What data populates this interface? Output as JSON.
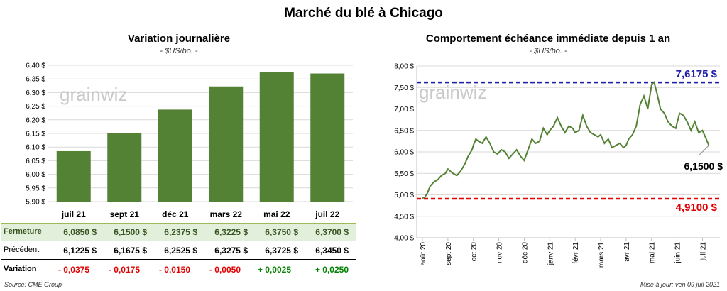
{
  "title": "Marché du blé à Chicago",
  "left_panel": {
    "title": "Variation journalière",
    "subtitle": "- $US/bo. -"
  },
  "right_panel": {
    "title": "Comportement échéance immédiate depuis 1 an",
    "subtitle": "- $US/bo. -"
  },
  "watermark": "grainwiz",
  "chart_data": [
    {
      "type": "bar",
      "categories": [
        "juil 21",
        "sept 21",
        "déc 21",
        "mars 22",
        "mai 22",
        "juil 22"
      ],
      "values": [
        6.085,
        6.15,
        6.2375,
        6.3225,
        6.375,
        6.37
      ],
      "ylim": [
        5.9,
        6.4
      ],
      "yticks": [
        "5,90 $",
        "5,95 $",
        "6,00 $",
        "6,05 $",
        "6,10 $",
        "6,15 $",
        "6,20 $",
        "6,25 $",
        "6,30 $",
        "6,35 $",
        "6,40 $"
      ],
      "color": "#548235",
      "grid": true
    },
    {
      "type": "line",
      "xticks": [
        "août 20",
        "sept 20",
        "oct 20",
        "nov 20",
        "déc 20",
        "janv 21",
        "févr 21",
        "mars 21",
        "avr 21",
        "mai 21",
        "juin 21",
        "juil 21"
      ],
      "ylim": [
        4.0,
        8.0
      ],
      "yticks": [
        "4,00 $",
        "4,50 $",
        "5,00 $",
        "5,50 $",
        "6,00 $",
        "6,50 $",
        "7,00 $",
        "7,50 $",
        "8,00 $"
      ],
      "series": [
        {
          "color": "#548235",
          "x": [
            0,
            0.1,
            0.2,
            0.3,
            0.45,
            0.6,
            0.75,
            0.9,
            1.0,
            1.1,
            1.2,
            1.35,
            1.5,
            1.65,
            1.8,
            1.95,
            2.0,
            2.1,
            2.2,
            2.35,
            2.5,
            2.65,
            2.8,
            2.95,
            3.1,
            3.25,
            3.4,
            3.55,
            3.7,
            3.85,
            4.0,
            4.15,
            4.3,
            4.45,
            4.6,
            4.75,
            4.9,
            5.0,
            5.15,
            5.3,
            5.45,
            5.6,
            5.75,
            5.9,
            6.0,
            6.15,
            6.3,
            6.45,
            6.6,
            6.75,
            6.9,
            7.0,
            7.15,
            7.3,
            7.45,
            7.6,
            7.75,
            7.9,
            8.0,
            8.1,
            8.25,
            8.4,
            8.55,
            8.7,
            8.85,
            9.0,
            9.1,
            9.2,
            9.35,
            9.5,
            9.65,
            9.8,
            9.95,
            10.1,
            10.25,
            10.4,
            10.55,
            10.7,
            10.85,
            11.0,
            11.15,
            11.25
          ],
          "y": [
            4.92,
            4.95,
            5.05,
            5.2,
            5.3,
            5.35,
            5.45,
            5.5,
            5.6,
            5.55,
            5.5,
            5.45,
            5.55,
            5.7,
            5.9,
            6.05,
            6.15,
            6.3,
            6.25,
            6.2,
            6.35,
            6.2,
            6.0,
            5.95,
            6.05,
            6.0,
            5.85,
            5.95,
            6.05,
            5.9,
            5.8,
            6.05,
            6.3,
            6.2,
            6.25,
            6.55,
            6.4,
            6.5,
            6.6,
            6.8,
            6.6,
            6.45,
            6.6,
            6.55,
            6.45,
            6.5,
            6.85,
            6.6,
            6.45,
            6.4,
            6.35,
            6.4,
            6.2,
            6.3,
            6.1,
            6.15,
            6.2,
            6.1,
            6.15,
            6.3,
            6.4,
            6.6,
            7.1,
            7.3,
            7.0,
            7.55,
            7.6175,
            7.4,
            7.0,
            6.9,
            6.7,
            6.6,
            6.55,
            6.9,
            6.85,
            6.7,
            6.5,
            6.7,
            6.45,
            6.5,
            6.3,
            6.15
          ]
        }
      ],
      "hlines": [
        {
          "value": 7.6175,
          "label": "7,6175 $",
          "color": "#1f1fa8"
        },
        {
          "value": 4.91,
          "label": "4,9100 $",
          "color": "#e00000"
        }
      ],
      "annotation": {
        "label": "6,1500 $",
        "value": 6.15
      }
    }
  ],
  "table": {
    "rows": [
      {
        "label": "Fermeture",
        "values": [
          "6,0850  $",
          "6,1500  $",
          "6,2375  $",
          "6,3225  $",
          "6,3750  $",
          "6,3700  $"
        ]
      },
      {
        "label": "Précédent",
        "values": [
          "6,1225  $",
          "6,1675  $",
          "6,2525  $",
          "6,3275  $",
          "6,3725  $",
          "6,3450  $"
        ]
      },
      {
        "label": "Variation",
        "values": [
          "- 0,0375",
          "- 0,0175",
          "- 0,0150",
          "- 0,0050",
          "+ 0,0025",
          "+ 0,0250"
        ],
        "signs": [
          "neg",
          "neg",
          "neg",
          "neg",
          "pos",
          "pos"
        ]
      }
    ]
  },
  "footer": {
    "source": "Source: CME Group",
    "updated": "Mise à jour: ven 09 juil 2021"
  }
}
